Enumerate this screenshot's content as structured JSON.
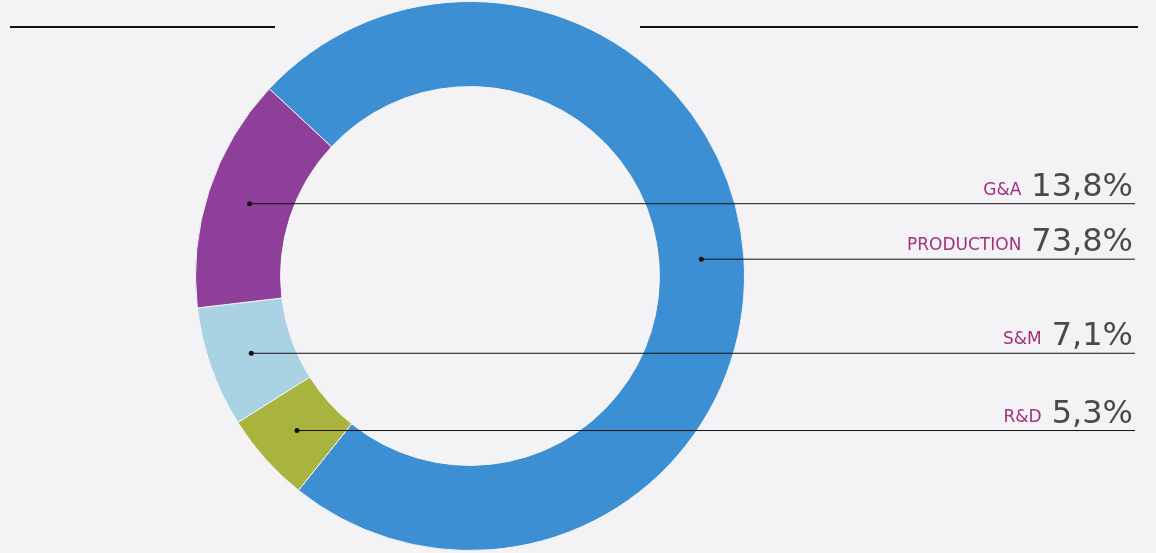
{
  "chart_data": {
    "type": "doughnut",
    "categories": [
      "PRODUCTION",
      "R&D",
      "S&M",
      "G&A"
    ],
    "values": [
      73.8,
      5.3,
      7.1,
      13.8
    ],
    "value_labels": [
      "73,8%",
      "5,3%",
      "7,1%",
      "13,8%"
    ],
    "colors": [
      "#3b8fd2",
      "#a9b43e",
      "#a9d3e3",
      "#8e3f99"
    ],
    "data_labels": true
  }
}
